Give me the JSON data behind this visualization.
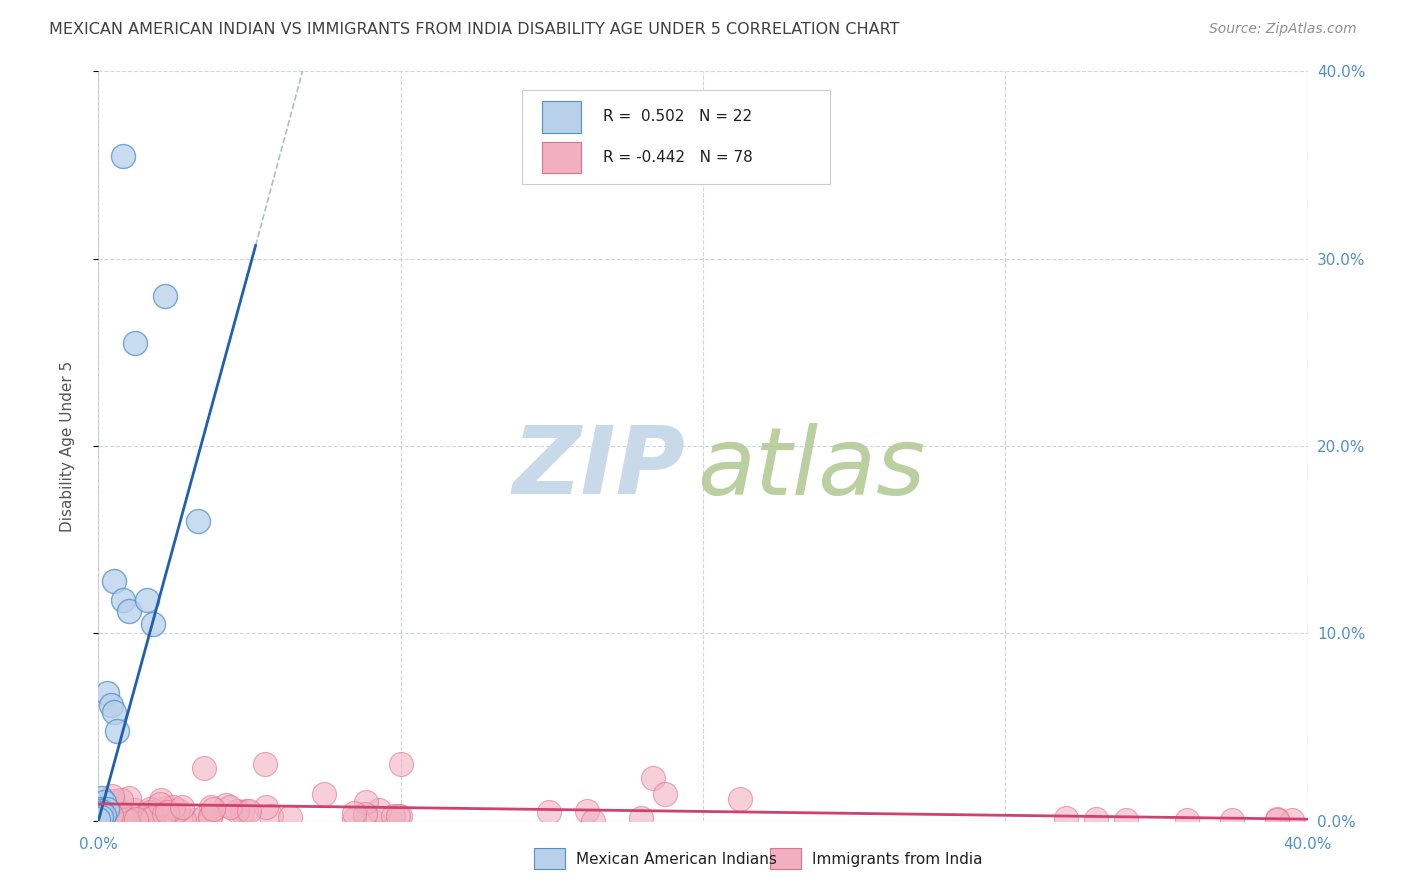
{
  "title": "MEXICAN AMERICAN INDIAN VS IMMIGRANTS FROM INDIA DISABILITY AGE UNDER 5 CORRELATION CHART",
  "source": "Source: ZipAtlas.com",
  "ylabel": "Disability Age Under 5",
  "r_blue": 0.502,
  "n_blue": 22,
  "r_pink": -0.442,
  "n_pink": 78,
  "blue_fill": "#b8d0ea",
  "blue_edge": "#5090cc",
  "pink_fill": "#f0b0c0",
  "pink_edge": "#e07090",
  "blue_line_color": "#2060b0",
  "pink_line_color": "#d04070",
  "dashed_line_color": "#b0bcc8",
  "title_color": "#404040",
  "source_color": "#909090",
  "axis_label_color": "#5090cc",
  "grid_color": "#d0d5e0",
  "bg_color": "#ffffff",
  "blue_scatter_x": [
    0.008,
    0.022,
    0.012,
    0.033,
    0.005,
    0.008,
    0.01,
    0.018,
    0.003,
    0.004,
    0.005,
    0.006,
    0.016,
    0.001,
    0.002,
    0.001,
    0.003,
    0.001,
    0.001,
    0.002,
    0.001,
    0.0
  ],
  "blue_scatter_y": [
    0.355,
    0.28,
    0.255,
    0.16,
    0.128,
    0.118,
    0.112,
    0.105,
    0.068,
    0.062,
    0.058,
    0.048,
    0.118,
    0.012,
    0.01,
    0.006,
    0.006,
    0.005,
    0.004,
    0.003,
    0.002,
    0.001
  ],
  "xmin": 0.0,
  "xmax": 0.4,
  "ymin": 0.0,
  "ymax": 0.4,
  "ytick_vals": [
    0.0,
    0.1,
    0.2,
    0.3,
    0.4
  ],
  "xtick_vals": [
    0.0,
    0.1,
    0.2,
    0.3,
    0.4
  ]
}
